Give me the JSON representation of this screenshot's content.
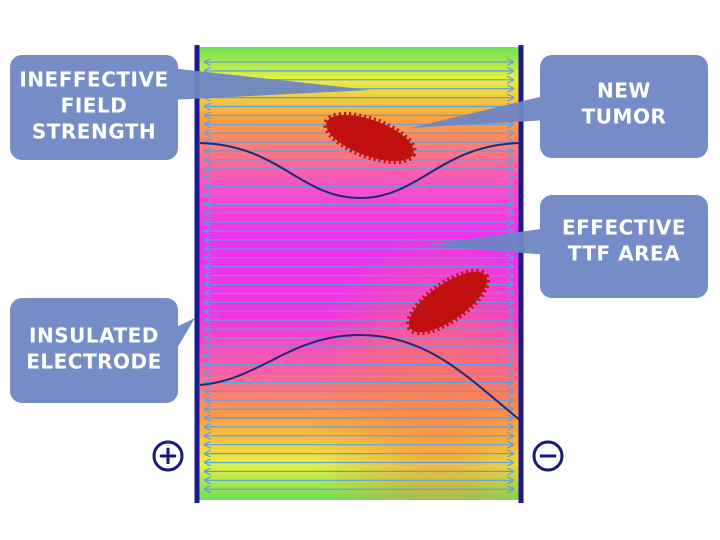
{
  "callouts": [
    {
      "lines": [
        "INEFFECTIVE",
        "FIELD",
        "STRENGTH"
      ]
    },
    {
      "lines": [
        "NEW",
        "TUMOR"
      ]
    },
    {
      "lines": [
        "EFFECTIVE",
        "TTF AREA"
      ]
    },
    {
      "lines": [
        "INSULATED",
        "ELECTRODE"
      ]
    }
  ],
  "electrodes": {
    "positive": "+",
    "negative": "−"
  }
}
